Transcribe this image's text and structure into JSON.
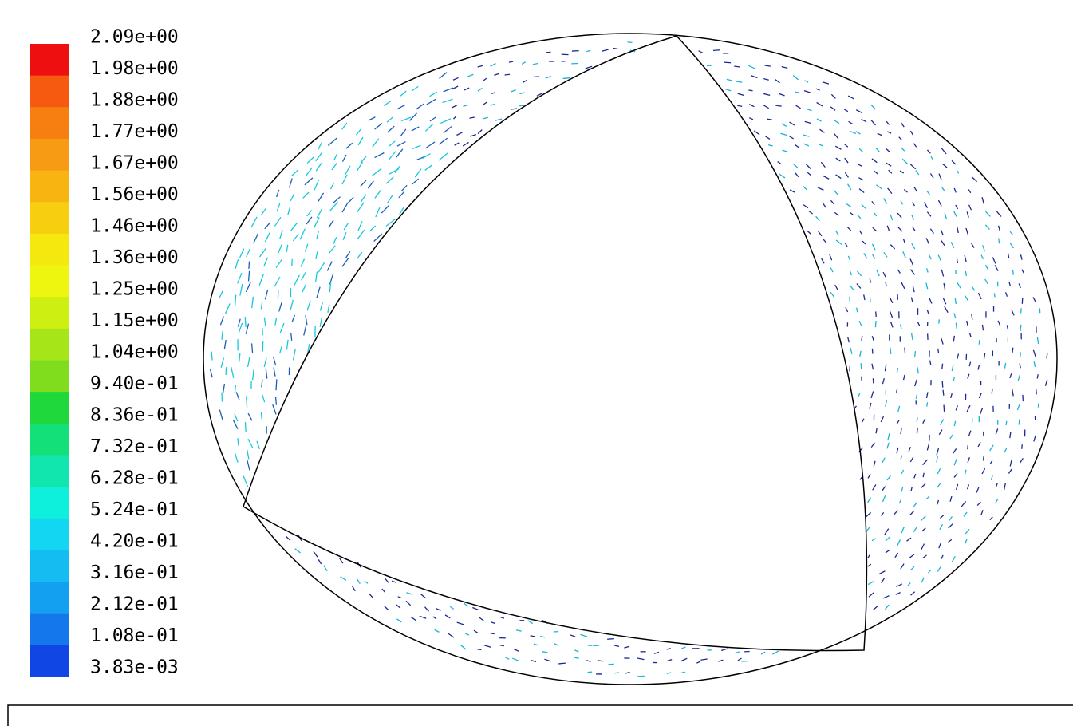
{
  "colorbar": {
    "labels": [
      "2.09e+00",
      "1.98e+00",
      "1.88e+00",
      "1.77e+00",
      "1.67e+00",
      "1.56e+00",
      "1.46e+00",
      "1.36e+00",
      "1.25e+00",
      "1.15e+00",
      "1.04e+00",
      "9.40e-01",
      "8.36e-01",
      "7.32e-01",
      "6.28e-01",
      "5.24e-01",
      "4.20e-01",
      "3.16e-01",
      "2.12e-01",
      "1.08e-01",
      "3.83e-03"
    ],
    "colors": [
      "#ee1010",
      "#f55a10",
      "#f77f12",
      "#f79a14",
      "#f8b512",
      "#f8cf10",
      "#f5e80e",
      "#eef50e",
      "#cdef12",
      "#a6e619",
      "#7fdd1e",
      "#1ed83c",
      "#14e07a",
      "#10e6ae",
      "#0ef0dc",
      "#12d6f2",
      "#14bcf2",
      "#14a0f0",
      "#1478ec",
      "#1046e4"
    ]
  }
}
